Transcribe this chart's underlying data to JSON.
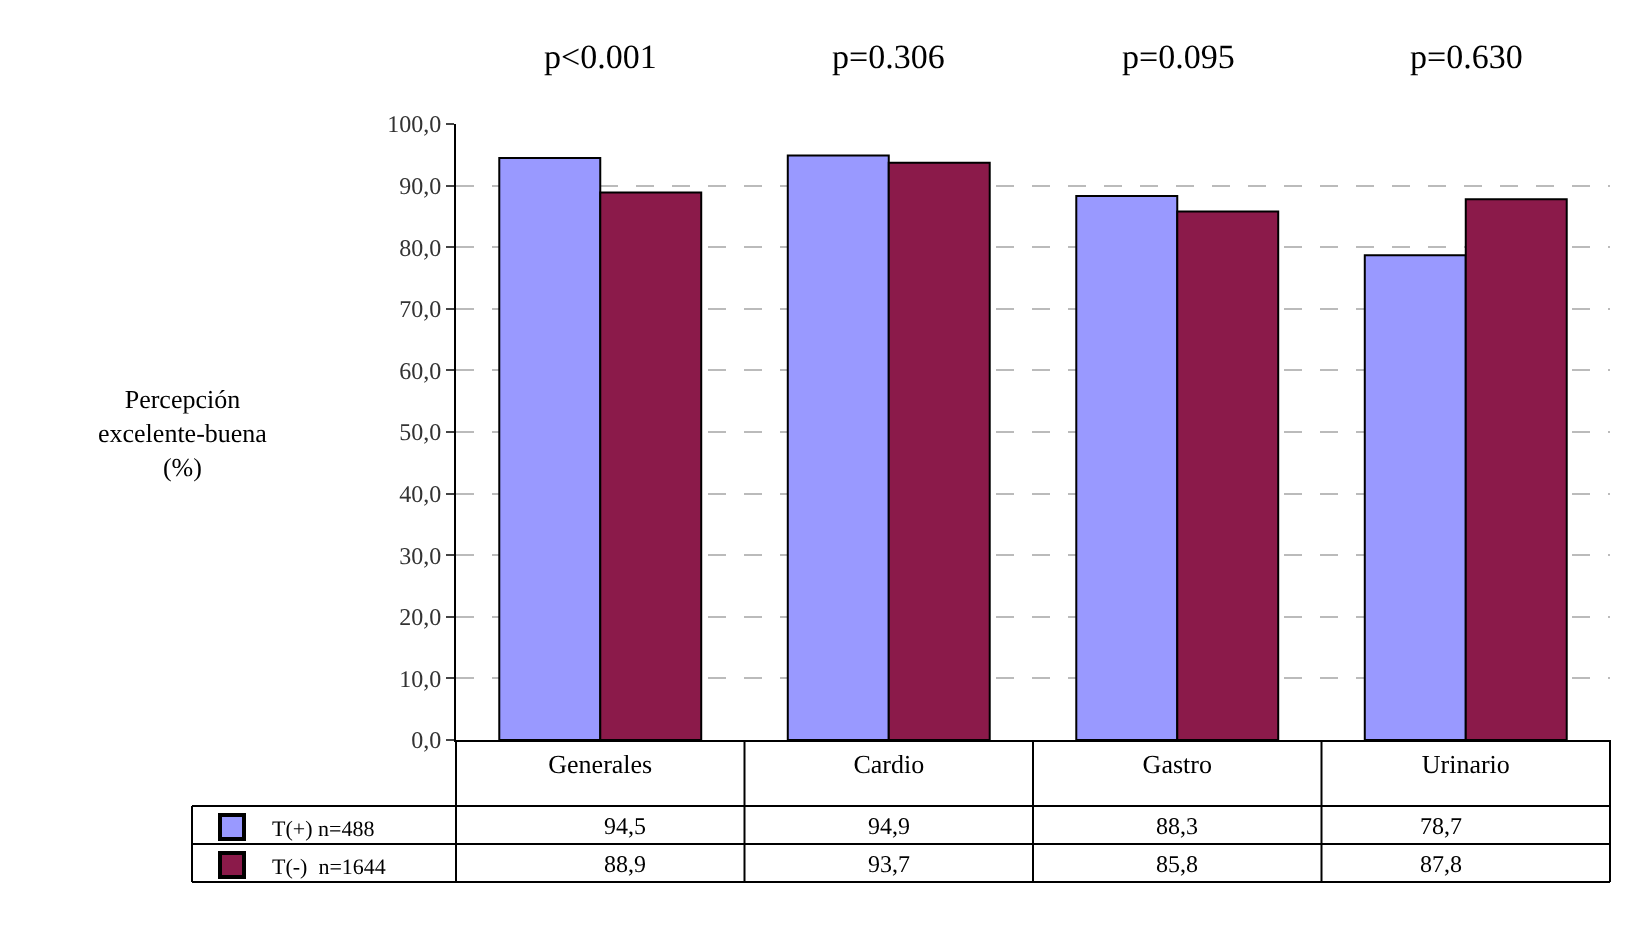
{
  "chart_data": {
    "type": "bar",
    "ylabel": "Percepción\nexcelente-buena\n(%)",
    "categories": [
      "Generales",
      "Cardio",
      "Gastro",
      "Urinario"
    ],
    "series": [
      {
        "name": "T(+) n=488",
        "color": "#9999ff",
        "values": [
          94.5,
          94.9,
          88.3,
          78.7
        ],
        "value_labels": [
          "94,5",
          "94,9",
          "88,3",
          "78,7"
        ]
      },
      {
        "name": "T(-)  n=1644",
        "color": "#8b1a4a",
        "values": [
          88.9,
          93.7,
          85.8,
          87.8
        ],
        "value_labels": [
          "88,9",
          "93,7",
          "85,8",
          "87,8"
        ]
      }
    ],
    "ylim": [
      0,
      100
    ],
    "yticks": [
      {
        "value": 0,
        "label": "0,0"
      },
      {
        "value": 10,
        "label": "10,0"
      },
      {
        "value": 20,
        "label": "20,0"
      },
      {
        "value": 30,
        "label": "30,0"
      },
      {
        "value": 40,
        "label": "40,0"
      },
      {
        "value": 50,
        "label": "50,0"
      },
      {
        "value": 60,
        "label": "60,0"
      },
      {
        "value": 70,
        "label": "70,0"
      },
      {
        "value": 80,
        "label": "80,0"
      },
      {
        "value": 90,
        "label": "90,0"
      },
      {
        "value": 100,
        "label": "100,0"
      }
    ],
    "grid": "y",
    "legend": "bottom left",
    "annotations": [
      "p<0.001",
      "p=0.306",
      "p=0.095",
      "p=0.630"
    ]
  }
}
